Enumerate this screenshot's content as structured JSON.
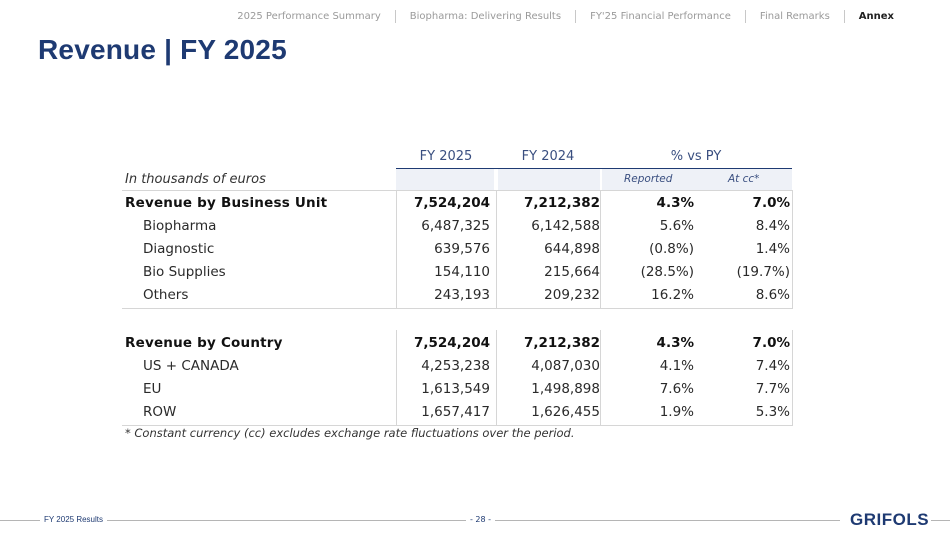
{
  "nav": {
    "items": [
      {
        "label": "2025 Performance Summary",
        "active": false
      },
      {
        "label": "Biopharma: Delivering Results",
        "active": false
      },
      {
        "label": "FY'25 Financial Performance",
        "active": false
      },
      {
        "label": "Final Remarks",
        "active": false
      },
      {
        "label": "Annex",
        "active": true
      }
    ]
  },
  "title": "Revenue | FY 2025",
  "table": {
    "headers": {
      "fy25": "FY 2025",
      "fy24": "FY 2024",
      "vs_py": "% vs PY"
    },
    "units": "In thousands of euros",
    "subheaders": {
      "reported": "Reported",
      "at_cc": "At cc*"
    },
    "bu_rows": [
      {
        "label": "Revenue by Business Unit",
        "fy25": "7,524,204",
        "fy24": "7,212,382",
        "rep": "4.3%",
        "cc": "7.0%"
      },
      {
        "label": "Biopharma",
        "fy25": "6,487,325",
        "fy24": "6,142,588",
        "rep": "5.6%",
        "cc": "8.4%"
      },
      {
        "label": "Diagnostic",
        "fy25": "639,576",
        "fy24": "644,898",
        "rep": "(0.8%)",
        "cc": "1.4%"
      },
      {
        "label": "Bio Supplies",
        "fy25": "154,110",
        "fy24": "215,664",
        "rep": "(28.5%)",
        "cc": "(19.7%)"
      },
      {
        "label": "Others",
        "fy25": "243,193",
        "fy24": "209,232",
        "rep": "16.2%",
        "cc": "8.6%"
      }
    ],
    "country_rows": [
      {
        "label": "Revenue by Country",
        "fy25": "7,524,204",
        "fy24": "7,212,382",
        "rep": "4.3%",
        "cc": "7.0%"
      },
      {
        "label": "US + CANADA",
        "fy25": "4,253,238",
        "fy24": "4,087,030",
        "rep": "4.1%",
        "cc": "7.4%"
      },
      {
        "label": "EU",
        "fy25": "1,613,549",
        "fy24": "1,498,898",
        "rep": "7.6%",
        "cc": "7.7%"
      },
      {
        "label": "ROW",
        "fy25": "1,657,417",
        "fy24": "1,626,455",
        "rep": "1.9%",
        "cc": "5.3%"
      }
    ]
  },
  "footnote": "* Constant currency (cc) excludes exchange rate fluctuations over the period.",
  "footer": {
    "left": "FY 2025 Results",
    "page": "- 28 -",
    "logo": "GRIFOLS"
  },
  "colors": {
    "brand": "#1e3a72",
    "subheader_bg": "#eef1f7",
    "gridline": "#d6d6d6"
  }
}
